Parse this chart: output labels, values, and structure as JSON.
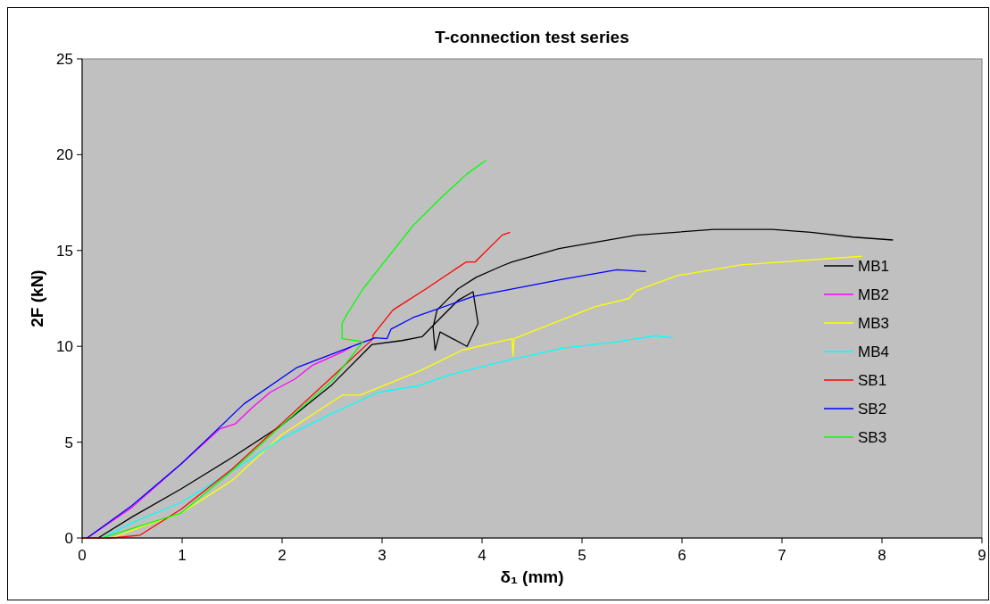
{
  "chart_data": {
    "type": "line",
    "title": "T-connection test series",
    "xlabel": "δ₁ (mm)",
    "ylabel": "2F (kN)",
    "xlim": [
      0,
      9
    ],
    "xticks": [
      0,
      1,
      2,
      3,
      4,
      5,
      6,
      7,
      8,
      9
    ],
    "ylim": [
      0,
      25
    ],
    "yticks": [
      0,
      5,
      10,
      15,
      20,
      25
    ],
    "grid": false,
    "legend": "right",
    "marker": "none",
    "line_style": "solid",
    "series": [
      {
        "name": "MB1",
        "color": "#000000",
        "x": [
          0.16,
          0.5,
          0.99,
          1.5,
          2.0,
          2.5,
          2.9,
          3.2,
          3.4,
          3.55,
          3.76,
          3.91,
          3.96,
          3.85,
          3.58,
          3.53,
          3.51,
          3.55,
          3.76,
          3.94,
          4.2,
          4.3,
          4.77,
          5.54,
          6.32,
          6.9,
          7.29,
          7.71,
          8.11
        ],
        "values": [
          0,
          1.1,
          2.56,
          4.2,
          5.9,
          8.0,
          10.1,
          10.3,
          10.5,
          11.3,
          12.4,
          12.85,
          11.2,
          10.0,
          10.75,
          9.8,
          11.0,
          11.9,
          13.0,
          13.6,
          14.2,
          14.4,
          15.1,
          15.8,
          16.1,
          16.1,
          15.95,
          15.7,
          15.55
        ]
      },
      {
        "name": "MB2",
        "color": "#ff00ff",
        "x": [
          0.05,
          0.5,
          0.99,
          1.38,
          1.53,
          1.7,
          1.88,
          2.13,
          2.3,
          2.6,
          2.7
        ],
        "values": [
          0,
          1.6,
          3.86,
          5.7,
          5.95,
          6.8,
          7.6,
          8.3,
          9.0,
          9.7,
          10.0
        ]
      },
      {
        "name": "MB3",
        "color": "#ffff00",
        "x": [
          0.3,
          0.6,
          0.99,
          1.5,
          2.0,
          2.6,
          2.78,
          3.37,
          3.8,
          4.3,
          4.31,
          4.32,
          5.12,
          5.47,
          5.54,
          5.96,
          6.59,
          7.8
        ],
        "values": [
          0,
          0.6,
          1.3,
          3.0,
          5.4,
          7.45,
          7.45,
          8.7,
          9.8,
          10.4,
          9.5,
          10.4,
          12.05,
          12.5,
          12.9,
          13.7,
          14.25,
          14.7
        ]
      },
      {
        "name": "MB4",
        "color": "#00ffff",
        "x": [
          0.2,
          0.5,
          0.99,
          1.5,
          2.0,
          2.5,
          2.96,
          3.37,
          3.67,
          4.2,
          4.8,
          5.3,
          5.73,
          5.91
        ],
        "values": [
          0,
          0.8,
          1.85,
          3.5,
          5.2,
          6.5,
          7.6,
          7.95,
          8.5,
          9.2,
          9.9,
          10.2,
          10.55,
          10.45
        ]
      },
      {
        "name": "SB1",
        "color": "#ff0000",
        "x": [
          0,
          0.3,
          0.58,
          0.99,
          1.5,
          2.0,
          2.5,
          2.91,
          2.91,
          3.11,
          3.44,
          3.84,
          3.93,
          4.2,
          4.28
        ],
        "values": [
          0,
          0,
          0.15,
          1.5,
          3.6,
          6.0,
          8.4,
          10.4,
          10.6,
          11.9,
          13.0,
          14.4,
          14.4,
          15.8,
          15.95
        ]
      },
      {
        "name": "SB2",
        "color": "#0000ff",
        "x": [
          0.05,
          0.5,
          0.99,
          1.62,
          2.15,
          2.78,
          2.93,
          3.05,
          3.09,
          3.31,
          3.91,
          4.8,
          5.35,
          5.64
        ],
        "values": [
          0,
          1.7,
          3.86,
          7.0,
          8.9,
          10.15,
          10.45,
          10.4,
          10.9,
          11.5,
          12.6,
          13.5,
          14.0,
          13.9
        ]
      },
      {
        "name": "SB3",
        "color": "#00ff00",
        "x": [
          0.2,
          0.5,
          0.99,
          1.5,
          2.0,
          2.5,
          2.81,
          2.6,
          2.6,
          2.64,
          2.81,
          2.96,
          3.31,
          3.62,
          3.85,
          4.04
        ],
        "values": [
          0,
          0.5,
          1.3,
          3.5,
          5.9,
          8.2,
          10.25,
          10.4,
          11.2,
          11.6,
          13.0,
          14.0,
          16.3,
          17.9,
          19.0,
          19.7
        ]
      }
    ]
  }
}
